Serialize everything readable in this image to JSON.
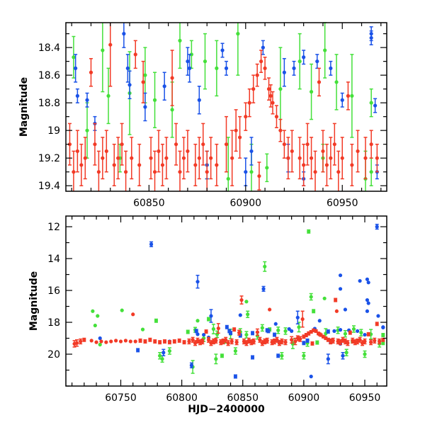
{
  "chart_data": [
    {
      "type": "scatter",
      "panel": "top",
      "title": "",
      "xlabel": "",
      "ylabel": "Magnitude",
      "xlim": [
        60807,
        60973
      ],
      "ylim": [
        19.44,
        18.22
      ],
      "y_inverted": true,
      "xticks": [
        60850,
        60900,
        60950
      ],
      "xticks_minor_step": 10,
      "yticks": [
        18.4,
        18.6,
        18.8,
        19,
        19.2,
        19.4
      ],
      "yticks_minor_step": 0.1,
      "xtick_labels": [
        "60850",
        "60900",
        "60950"
      ],
      "ytick_labels": [
        "18.4",
        "18.6",
        "18.8",
        "19",
        "19.2",
        "19.4"
      ]
    },
    {
      "type": "scatter",
      "panel": "bottom",
      "title": "",
      "xlabel": "HJD−2400000",
      "ylabel": "Magnitude",
      "xlim": [
        60705,
        60968
      ],
      "ylim": [
        22.0,
        11.33
      ],
      "y_inverted": true,
      "xticks": [
        60750,
        60800,
        60850,
        60900,
        60950
      ],
      "xticks_minor_step": 10,
      "yticks": [
        12,
        14,
        16,
        18,
        20
      ],
      "yticks_minor_step": 1,
      "xtick_labels": [
        "60750",
        "60800",
        "60850",
        "60900",
        "60950"
      ],
      "ytick_labels": [
        "12",
        "14",
        "16",
        "18",
        "20"
      ]
    }
  ],
  "series": [
    {
      "name": "green",
      "color": "#44e03a",
      "points": [
        [
          60727,
          17.3,
          0.05
        ],
        [
          60729,
          18.2,
          0.05
        ],
        [
          60731,
          17.6,
          0.05
        ],
        [
          60733,
          19.4,
          0.05
        ],
        [
          60751,
          17.25,
          0.05
        ],
        [
          60768,
          18.45,
          0.05
        ],
        [
          60779,
          17.9,
          0.1
        ],
        [
          60782,
          20.1,
          0.2
        ],
        [
          60784,
          20.3,
          0.2
        ],
        [
          60790,
          19.8,
          0.2
        ],
        [
          60805,
          18.6,
          0.1
        ],
        [
          60809,
          20.8,
          0.4
        ],
        [
          60813,
          17.9,
          0.05
        ],
        [
          60822,
          17.8,
          0.1
        ],
        [
          60828,
          20.3,
          0.3
        ],
        [
          60833,
          20.1,
          0.1
        ],
        [
          60844,
          19.8,
          0.2
        ],
        [
          60854,
          17.5,
          0.2
        ],
        [
          60853,
          16.7,
          0.05
        ],
        [
          60868,
          14.5,
          0.3
        ],
        [
          60882,
          20.1,
          0.2
        ],
        [
          60900,
          20.1,
          0.2
        ],
        [
          60904,
          12.3,
          0.1
        ],
        [
          60906,
          16.4,
          0.2
        ],
        [
          60908,
          17.3,
          0.1
        ],
        [
          60917,
          16.5,
          0.05
        ],
        [
          60935,
          19.9,
          0.2
        ],
        [
          60950,
          20.0,
          0.2
        ],
        [
          60965,
          18.8,
          0.1
        ],
        [
          60968,
          19.7,
          0.1
        ],
        [
          60811,
          18.47,
          0.15
        ],
        [
          60818,
          19.0,
          0.2
        ],
        [
          60826,
          18.42,
          0.3
        ],
        [
          60829,
          18.75,
          0.2
        ],
        [
          60840,
          18.73,
          0.3
        ],
        [
          60848,
          18.6,
          0.2
        ],
        [
          60853,
          18.78,
          0.2
        ],
        [
          60862,
          18.85,
          0.2
        ],
        [
          60866,
          18.35,
          0.2
        ],
        [
          60872,
          18.45,
          0.1
        ],
        [
          60879,
          18.5,
          0.2
        ],
        [
          60885,
          18.55,
          0.2
        ],
        [
          60891,
          19.35,
          0.3
        ],
        [
          60896,
          18.3,
          0.3
        ],
        [
          60903,
          19.3,
          0.2
        ],
        [
          60911,
          19.27,
          0.1
        ],
        [
          60918,
          18.7,
          0.3
        ],
        [
          60928,
          18.5,
          0.2
        ],
        [
          60934,
          18.72,
          0.2
        ],
        [
          60941,
          18.42,
          0.2
        ],
        [
          60947,
          18.65,
          0.2
        ],
        [
          60955,
          18.75,
          0.3
        ],
        [
          60962,
          19.35,
          0.2
        ],
        [
          60965,
          19.3,
          0.1
        ],
        [
          60835,
          19.2,
          0.1
        ],
        [
          60880,
          19.25,
          0.1
        ],
        [
          60940,
          19.2,
          0.1
        ]
      ]
    },
    {
      "name": "blue",
      "color": "#1a52e8",
      "points": [
        [
          60733,
          19.0,
          0.05
        ],
        [
          60764,
          19.75,
          0.1
        ],
        [
          60775,
          13.1,
          0.15
        ],
        [
          60785,
          19.9,
          0.2
        ],
        [
          60808,
          20.7,
          0.15
        ],
        [
          60813,
          15.45,
          0.4
        ],
        [
          60824,
          17.6,
          0.4
        ],
        [
          60844,
          21.4,
          0.1
        ],
        [
          60848,
          17.55,
          0.05
        ],
        [
          60858,
          20.2,
          0.1
        ],
        [
          60867,
          15.9,
          0.15
        ],
        [
          60877,
          18.1,
          0.05
        ],
        [
          60879,
          20.1,
          0.1
        ],
        [
          60895,
          17.7,
          0.4
        ],
        [
          60906,
          21.4,
          0.05
        ],
        [
          60913,
          17.9,
          0.05
        ],
        [
          60920,
          20.3,
          0.3
        ],
        [
          60930,
          15.05,
          0.05
        ],
        [
          60930,
          15.9,
          0.05
        ],
        [
          60932,
          20.1,
          0.2
        ],
        [
          60934,
          17.2,
          0.05
        ],
        [
          60946,
          15.4,
          0.05
        ],
        [
          60952,
          15.3,
          0.05
        ],
        [
          60953,
          15.5,
          0.05
        ],
        [
          60952,
          16.6,
          0.05
        ],
        [
          60953,
          16.8,
          0.05
        ],
        [
          60952,
          17.3,
          0.05
        ],
        [
          60960,
          12.0,
          0.15
        ],
        [
          60961,
          17.6,
          0.05
        ],
        [
          60965,
          18.3,
          0.05
        ],
        [
          60812,
          18.55,
          0.1
        ],
        [
          60813,
          18.75,
          0.05
        ],
        [
          60818,
          18.78,
          0.05
        ],
        [
          60822,
          18.95,
          0.05
        ],
        [
          60837,
          18.3,
          0.1
        ],
        [
          60839,
          18.55,
          0.1
        ],
        [
          60840,
          18.67,
          0.1
        ],
        [
          60848,
          18.83,
          0.1
        ],
        [
          60858,
          18.68,
          0.1
        ],
        [
          60870,
          18.5,
          0.1
        ],
        [
          60871,
          18.55,
          0.1
        ],
        [
          60876,
          18.78,
          0.1
        ],
        [
          60888,
          18.42,
          0.05
        ],
        [
          60890,
          18.55,
          0.05
        ],
        [
          60909,
          18.4,
          0.05
        ],
        [
          60920,
          18.58,
          0.1
        ],
        [
          60925,
          18.55,
          0.05
        ],
        [
          60930,
          18.47,
          0.05
        ],
        [
          60937,
          18.5,
          0.05
        ],
        [
          60944,
          18.55,
          0.05
        ],
        [
          60950,
          18.78,
          0.05
        ],
        [
          60965,
          18.33,
          0.05
        ],
        [
          60967,
          18.82,
          0.05
        ],
        [
          60930,
          19.35,
          0.05
        ],
        [
          60900,
          19.3,
          0.1
        ],
        [
          60903,
          19.15,
          0.1
        ],
        [
          60790,
          19.2,
          0.05
        ],
        [
          60880,
          19.25,
          0.1
        ],
        [
          60922,
          19.2,
          0.1
        ],
        [
          60968,
          19.3,
          0.05
        ]
      ]
    },
    {
      "name": "red",
      "color": "#f23a26",
      "points": [
        [
          60712,
          19.35,
          0.2
        ],
        [
          60714,
          19.3,
          0.2
        ],
        [
          60717,
          19.2,
          0.15
        ],
        [
          60720,
          19.1,
          0.1
        ],
        [
          60726,
          19.15,
          0.05
        ],
        [
          60730,
          19.25,
          0.05
        ],
        [
          60734,
          19.2,
          0.05
        ],
        [
          60738,
          19.25,
          0.05
        ],
        [
          60742,
          19.2,
          0.05
        ],
        [
          60746,
          19.15,
          0.05
        ],
        [
          60750,
          19.2,
          0.05
        ],
        [
          60754,
          19.15,
          0.05
        ],
        [
          60758,
          19.2,
          0.05
        ],
        [
          60760,
          17.5,
          0.05
        ],
        [
          60762,
          19.2,
          0.05
        ],
        [
          60766,
          19.15,
          0.1
        ],
        [
          60770,
          19.2,
          0.1
        ],
        [
          60774,
          19.1,
          0.1
        ],
        [
          60778,
          19.2,
          0.1
        ],
        [
          60782,
          19.25,
          0.1
        ],
        [
          60786,
          19.2,
          0.1
        ],
        [
          60790,
          19.25,
          0.1
        ],
        [
          60794,
          19.2,
          0.1
        ],
        [
          60798,
          19.15,
          0.1
        ],
        [
          60802,
          19.25,
          0.1
        ],
        [
          60806,
          19.2,
          0.15
        ],
        [
          60809,
          19.1,
          0.15
        ],
        [
          60811,
          19.3,
          0.15
        ],
        [
          60813,
          19.15,
          0.15
        ],
        [
          60815,
          19.25,
          0.15
        ],
        [
          60817,
          19.2,
          0.15
        ],
        [
          60820,
          18.58,
          0.1
        ],
        [
          60822,
          19.1,
          0.15
        ],
        [
          60824,
          19.3,
          0.15
        ],
        [
          60826,
          19.2,
          0.15
        ],
        [
          60828,
          19.15,
          0.15
        ],
        [
          60830,
          18.38,
          0.3
        ],
        [
          60832,
          19.25,
          0.15
        ],
        [
          60834,
          19.2,
          0.15
        ],
        [
          60836,
          19.1,
          0.15
        ],
        [
          60838,
          19.3,
          0.15
        ],
        [
          60841,
          19.2,
          0.15
        ],
        [
          60843,
          18.45,
          0.1
        ],
        [
          60845,
          19.25,
          0.15
        ],
        [
          60847,
          18.65,
          0.15
        ],
        [
          60849,
          16.6,
          0.25
        ],
        [
          60851,
          19.2,
          0.15
        ],
        [
          60853,
          19.3,
          0.15
        ],
        [
          60855,
          19.15,
          0.15
        ],
        [
          60857,
          19.25,
          0.15
        ],
        [
          60859,
          19.2,
          0.15
        ],
        [
          60862,
          18.62,
          0.2
        ],
        [
          60864,
          19.1,
          0.15
        ],
        [
          60866,
          19.3,
          0.15
        ],
        [
          60868,
          19.2,
          0.15
        ],
        [
          60870,
          19.15,
          0.15
        ],
        [
          60872,
          17.2,
          0.05
        ],
        [
          60874,
          19.25,
          0.15
        ],
        [
          60876,
          19.2,
          0.15
        ],
        [
          60878,
          19.1,
          0.15
        ],
        [
          60880,
          19.3,
          0.15
        ],
        [
          60882,
          19.2,
          0.15
        ],
        [
          60885,
          19.25,
          0.15
        ],
        [
          60890,
          19.1,
          0.2
        ],
        [
          60893,
          19.2,
          0.2
        ],
        [
          60895,
          19.0,
          0.15
        ],
        [
          60897,
          19.05,
          0.15
        ],
        [
          60899,
          17.8,
          0.5
        ],
        [
          60900,
          18.9,
          0.1
        ],
        [
          60902,
          18.8,
          0.1
        ],
        [
          60904,
          18.7,
          0.1
        ],
        [
          60906,
          18.6,
          0.08
        ],
        [
          60907,
          19.33,
          0.1
        ],
        [
          60908,
          18.5,
          0.08
        ],
        [
          60910,
          18.55,
          0.08
        ],
        [
          60912,
          18.7,
          0.08
        ],
        [
          60913,
          18.75,
          0.08
        ],
        [
          60914,
          18.8,
          0.08
        ],
        [
          60916,
          18.9,
          0.08
        ],
        [
          60918,
          19.0,
          0.08
        ],
        [
          60920,
          19.1,
          0.1
        ],
        [
          60922,
          19.2,
          0.15
        ],
        [
          60924,
          19.15,
          0.15
        ],
        [
          60926,
          16.6,
          0.1
        ],
        [
          60927,
          17.3,
          0.05
        ],
        [
          60928,
          19.2,
          0.15
        ],
        [
          60930,
          19.25,
          0.15
        ],
        [
          60932,
          19.1,
          0.15
        ],
        [
          60934,
          19.2,
          0.15
        ],
        [
          60936,
          19.3,
          0.15
        ],
        [
          60938,
          18.65,
          0.1
        ],
        [
          60940,
          19.15,
          0.15
        ],
        [
          60942,
          19.25,
          0.15
        ],
        [
          60944,
          19.2,
          0.15
        ],
        [
          60946,
          19.1,
          0.15
        ],
        [
          60948,
          19.3,
          0.15
        ],
        [
          60950,
          19.2,
          0.15
        ],
        [
          60953,
          18.75,
          0.1
        ],
        [
          60955,
          19.25,
          0.15
        ],
        [
          60958,
          19.15,
          0.15
        ],
        [
          60960,
          18.1,
          0.1
        ],
        [
          60962,
          19.2,
          0.15
        ],
        [
          60965,
          19.1,
          0.1
        ],
        [
          60968,
          19.2,
          0.1
        ]
      ]
    }
  ]
}
